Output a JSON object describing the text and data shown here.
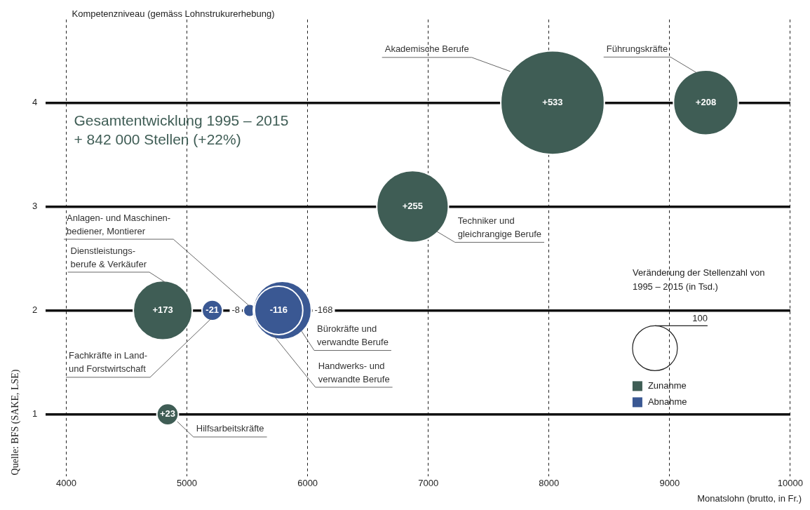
{
  "chart_data": {
    "type": "bubble",
    "ylabel": "Kompetenzniveau (gemäss Lohnstrukurerhebung)",
    "xlabel": "Monatslohn (brutto, in Fr.)",
    "legend_title": "Veränderung der Stellenzahl von 1995 – 2015 (in Tsd.)",
    "size_legend": [
      100
    ],
    "xlim": [
      3830,
      10000
    ],
    "xticks": [
      4000,
      5000,
      6000,
      7000,
      8000,
      9000,
      10000
    ],
    "ylim": [
      0.4,
      4.8
    ],
    "yticks": [
      1,
      2,
      3,
      4
    ],
    "grid": true,
    "legend": "bottom right",
    "series": [
      {
        "name": "Zunahme",
        "color": "#3f5d55",
        "x": [
          8030,
          9300,
          6870,
          4800,
          4840
        ],
        "values": [
          4,
          4,
          3,
          2,
          1
        ],
        "sizes": [
          533,
          208,
          255,
          173,
          23
        ]
      },
      {
        "name": "Abnahme",
        "color": "#3a5893",
        "x": [
          5210,
          5520,
          5790,
          5760
        ],
        "values": [
          2,
          2,
          2,
          2
        ],
        "sizes": [
          21,
          8,
          168,
          116
        ]
      }
    ],
    "annotations": [
      "Gesamtentwicklung 1995 – 2015\n+ 842 000 Stellen (+22%)",
      "Quelle: BFS (SAKE, LSE)",
      {
        "text": "Akademische Berufe",
        "x": 7680,
        "y": 4.3
      },
      {
        "text": "Führungskräfte",
        "x": 9220,
        "y": 4.29
      },
      {
        "text": "Techniker und\ngleichrangige Berufe",
        "x": 7070,
        "y": 2.76
      },
      {
        "text": "Anlagen- und Maschinen-\nbediener, Montierer",
        "x": 5520,
        "y": 2.04
      },
      {
        "text": "Dienstleistungs-\nberufe & Verkäufer",
        "x": 4820,
        "y": 2.27
      },
      {
        "text": "Fachkräfte in Land-\nund Forstwirtschaft",
        "x": 5200,
        "y": 1.92
      },
      {
        "text": "Bürokräfte und\nverwandte Berufe",
        "x": 5950,
        "y": 1.8
      },
      {
        "text": "Handwerks- und\nverwandte Berufe",
        "x": 5710,
        "y": 1.77
      },
      {
        "text": "Hilfsarbeitskräfte",
        "x": 4920,
        "y": 0.93
      },
      {
        "text": "+533",
        "x": 8030,
        "y": 4
      },
      {
        "text": "+208",
        "x": 9300,
        "y": 4
      },
      {
        "text": "+255",
        "x": 6870,
        "y": 3
      },
      {
        "text": "+173",
        "x": 4800,
        "y": 2
      },
      {
        "text": "+23",
        "x": 4840,
        "y": 1
      },
      {
        "text": "-21",
        "x": 5210,
        "y": 2
      },
      {
        "text": "-8",
        "x": 5520,
        "y": 2
      },
      "-168",
      {
        "text": "-116",
        "x": 5760,
        "y": 2
      }
    ]
  }
}
